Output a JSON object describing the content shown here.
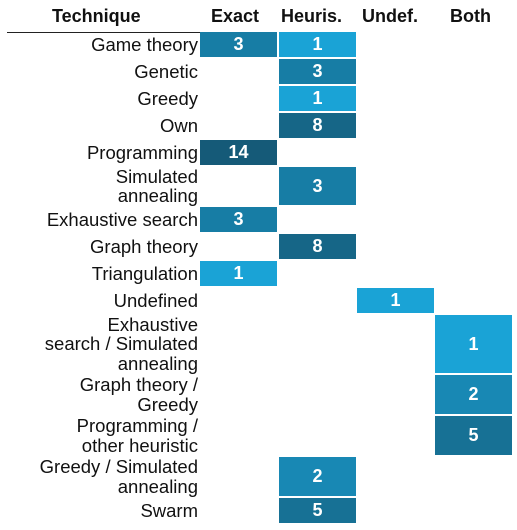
{
  "chart_data": {
    "type": "heatmap",
    "corner_label": "Technique",
    "columns": [
      "Exact",
      "Heuris.",
      "Undef.",
      "Both"
    ],
    "rows": [
      {
        "label": "Game theory",
        "values": [
          3,
          1,
          null,
          null
        ]
      },
      {
        "label": "Genetic",
        "values": [
          null,
          3,
          null,
          null
        ]
      },
      {
        "label": "Greedy",
        "values": [
          null,
          1,
          null,
          null
        ]
      },
      {
        "label": "Own",
        "values": [
          null,
          8,
          null,
          null
        ]
      },
      {
        "label": "Programming",
        "values": [
          14,
          null,
          null,
          null
        ]
      },
      {
        "label": "Simulated\nannealing",
        "values": [
          null,
          3,
          null,
          null
        ]
      },
      {
        "label": "Exhaustive search",
        "values": [
          3,
          null,
          null,
          null
        ]
      },
      {
        "label": "Graph theory",
        "values": [
          null,
          8,
          null,
          null
        ]
      },
      {
        "label": "Triangulation",
        "values": [
          1,
          null,
          null,
          null
        ]
      },
      {
        "label": "Undefined",
        "values": [
          null,
          null,
          1,
          null
        ]
      },
      {
        "label": "Exhaustive\nsearch / Simulated\nannealing",
        "values": [
          null,
          null,
          null,
          1
        ]
      },
      {
        "label": "Graph theory /\nGreedy",
        "values": [
          null,
          null,
          null,
          2
        ]
      },
      {
        "label": "Programming /\nother heuristic",
        "values": [
          null,
          null,
          null,
          5
        ]
      },
      {
        "label": "Greedy / Simulated\nannealing",
        "values": [
          null,
          2,
          null,
          null
        ]
      },
      {
        "label": "Swarm",
        "values": [
          null,
          5,
          null,
          null
        ]
      }
    ],
    "color_scale": {
      "low": "#1aa3d6",
      "high": "#155a78"
    }
  }
}
